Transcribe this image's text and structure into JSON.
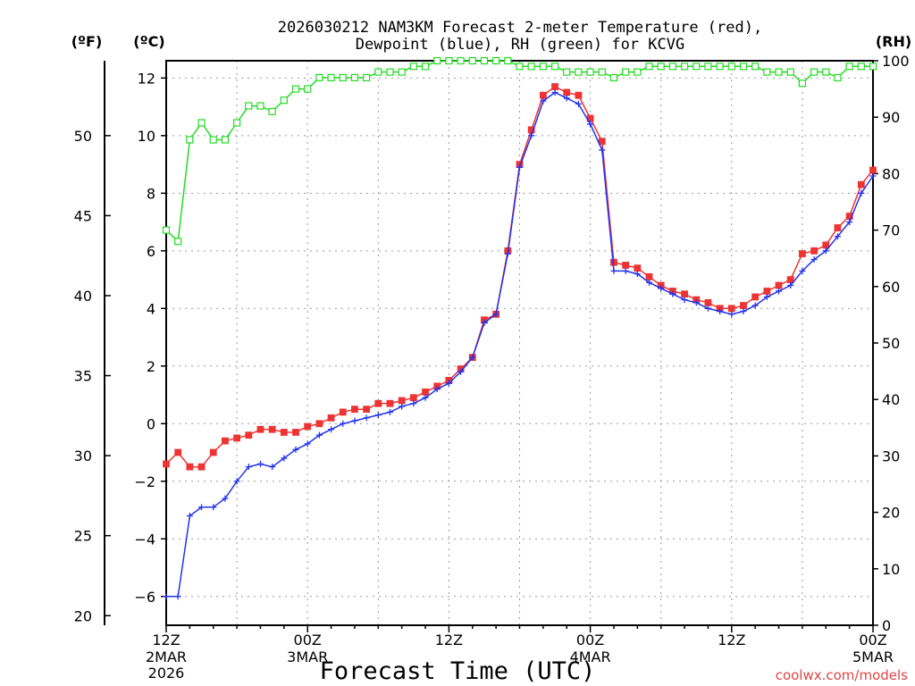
{
  "chart_data": {
    "type": "line",
    "title_line1": "2026030212 NAM3KM Forecast 2-meter Temperature (red),",
    "title_line2": "Dewpoint (blue), RH (green) for KCVG",
    "xlabel": "Forecast Time (UTC)",
    "unit_f": "(ºF)",
    "unit_c": "(ºC)",
    "unit_rh": "(RH)",
    "credit": "coolwx.com/models",
    "xlim": [
      0,
      60
    ],
    "ylim_c": [
      -7.0,
      12.6
    ],
    "ylim_rh": [
      0,
      100
    ],
    "x_ticks": [
      {
        "x": 0,
        "line1": "12Z",
        "line2": "2MAR",
        "line3": "2026"
      },
      {
        "x": 12,
        "line1": "00Z",
        "line2": "3MAR",
        "line3": ""
      },
      {
        "x": 24,
        "line1": "12Z",
        "line2": "",
        "line3": ""
      },
      {
        "x": 36,
        "line1": "00Z",
        "line2": "4MAR",
        "line3": ""
      },
      {
        "x": 48,
        "line1": "12Z",
        "line2": "",
        "line3": ""
      },
      {
        "x": 60,
        "line1": "00Z",
        "line2": "5MAR",
        "line3": ""
      }
    ],
    "yc_ticks": [
      "−6",
      "−4",
      "−2",
      "0",
      "2",
      "4",
      "6",
      "8",
      "10",
      "12"
    ],
    "yc_tick_values": [
      -6,
      -4,
      -2,
      0,
      2,
      4,
      6,
      8,
      10,
      12
    ],
    "yf_ticks": [
      "20",
      "25",
      "30",
      "35",
      "40",
      "45",
      "50"
    ],
    "yf_tick_values": [
      20,
      25,
      30,
      35,
      40,
      45,
      50
    ],
    "yrh_ticks": [
      "0",
      "10",
      "20",
      "30",
      "40",
      "50",
      "60",
      "70",
      "80",
      "90",
      "100"
    ],
    "yrh_tick_values": [
      0,
      10,
      20,
      30,
      40,
      50,
      60,
      70,
      80,
      90,
      100
    ],
    "series": [
      {
        "name": "Temperature (red)",
        "color": "#ee3333",
        "marker": "filled-square",
        "axis": "C",
        "values": [
          -1.4,
          -1.0,
          -1.5,
          -1.5,
          -1.0,
          -0.6,
          -0.5,
          -0.4,
          -0.2,
          -0.2,
          -0.3,
          -0.3,
          -0.1,
          0.0,
          0.2,
          0.4,
          0.5,
          0.5,
          0.7,
          0.7,
          0.8,
          0.9,
          1.1,
          1.3,
          1.5,
          1.9,
          2.3,
          3.6,
          3.8,
          6.0,
          9.0,
          10.2,
          11.4,
          11.7,
          11.5,
          11.4,
          10.6,
          9.8,
          5.6,
          5.5,
          5.4,
          5.1,
          4.8,
          4.6,
          4.5,
          4.3,
          4.2,
          4.0,
          4.0,
          4.1,
          4.4,
          4.6,
          4.8,
          5.0,
          5.9,
          6.0,
          6.2,
          6.8,
          7.2,
          8.3,
          8.8
        ]
      },
      {
        "name": "Dewpoint (blue)",
        "color": "#2233ee",
        "marker": "plus",
        "axis": "C",
        "values": [
          -6.0,
          -6.0,
          -3.2,
          -2.9,
          -2.9,
          -2.6,
          -2.0,
          -1.5,
          -1.4,
          -1.5,
          -1.2,
          -0.9,
          -0.7,
          -0.4,
          -0.2,
          0.0,
          0.1,
          0.2,
          0.3,
          0.4,
          0.6,
          0.7,
          0.9,
          1.2,
          1.4,
          1.8,
          2.3,
          3.5,
          3.8,
          5.9,
          8.9,
          10.0,
          11.2,
          11.5,
          11.3,
          11.1,
          10.4,
          9.5,
          5.3,
          5.3,
          5.2,
          4.9,
          4.7,
          4.5,
          4.3,
          4.2,
          4.0,
          3.9,
          3.8,
          3.9,
          4.1,
          4.4,
          4.6,
          4.8,
          5.3,
          5.7,
          6.0,
          6.5,
          7.0,
          8.0,
          8.6
        ]
      },
      {
        "name": "RH (green)",
        "color": "#22dd22",
        "marker": "open-square",
        "axis": "RH",
        "values": [
          70,
          68,
          86,
          89,
          86,
          86,
          89,
          92,
          92,
          91,
          93,
          95,
          95,
          97,
          97,
          97,
          97,
          97,
          98,
          98,
          98,
          99,
          99,
          100,
          100,
          100,
          100,
          100,
          100,
          100,
          99,
          99,
          99,
          99,
          98,
          98,
          98,
          98,
          97,
          98,
          98,
          99,
          99,
          99,
          99,
          99,
          99,
          99,
          99,
          99,
          99,
          98,
          98,
          98,
          96,
          98,
          98,
          97,
          99,
          99,
          99
        ]
      }
    ]
  }
}
